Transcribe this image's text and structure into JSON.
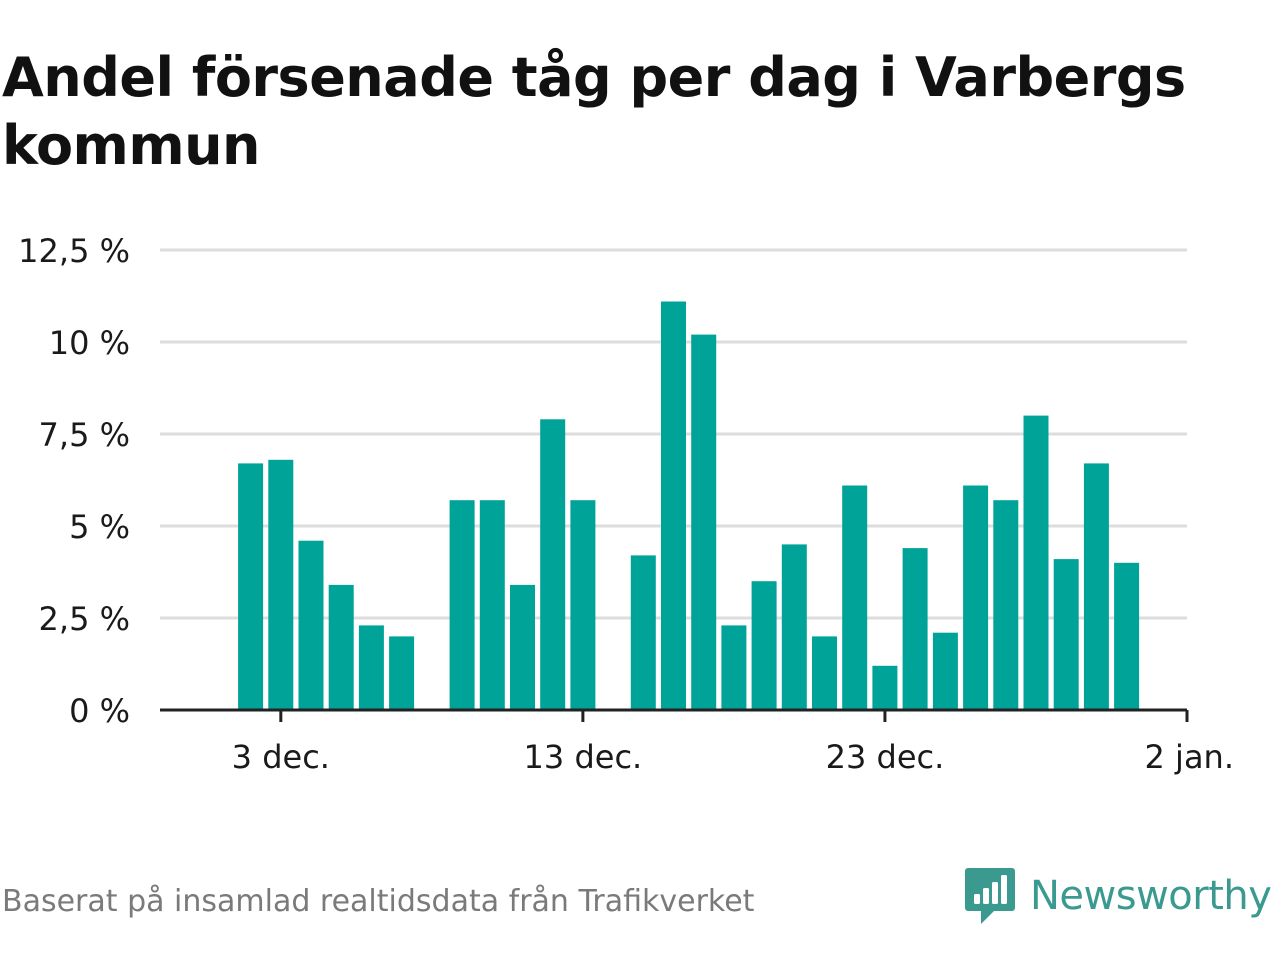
{
  "title": "Andel försenade tåg per dag i Varbergs kommun",
  "source_note": "Baserat på insamlad realtidsdata från Trafikverket",
  "brand": {
    "name": "Newsworthy",
    "icon": "newsworthy-logo-icon"
  },
  "colors": {
    "bar": "#00a398",
    "grid": "#dddddd",
    "axis": "#222222",
    "brand": "#3a9a8f"
  },
  "chart_data": {
    "type": "bar",
    "title": "Andel försenade tåg per dag i Varbergs kommun",
    "xlabel": "",
    "ylabel": "",
    "ylim": [
      0,
      12.5
    ],
    "xlim": [
      "2023-11-29",
      "2024-01-02"
    ],
    "y_ticks": [
      {
        "value": 0,
        "label": "0 %"
      },
      {
        "value": 2.5,
        "label": "2,5 %"
      },
      {
        "value": 5,
        "label": "5 %"
      },
      {
        "value": 7.5,
        "label": "7,5 %"
      },
      {
        "value": 10,
        "label": "10 %"
      },
      {
        "value": 12.5,
        "label": "12,5 %"
      }
    ],
    "x_ticks": [
      {
        "date": "2023-12-03",
        "label": "3 dec."
      },
      {
        "date": "2023-12-13",
        "label": "13 dec."
      },
      {
        "date": "2023-12-23",
        "label": "23 dec."
      },
      {
        "date": "2024-01-02",
        "label": "2 jan."
      }
    ],
    "grid": true,
    "legend": "none",
    "x": [
      "2023-12-02",
      "2023-12-03",
      "2023-12-04",
      "2023-12-05",
      "2023-12-06",
      "2023-12-07",
      "2023-12-08",
      "2023-12-09",
      "2023-12-10",
      "2023-12-11",
      "2023-12-12",
      "2023-12-13",
      "2023-12-14",
      "2023-12-15",
      "2023-12-16",
      "2023-12-17",
      "2023-12-18",
      "2023-12-19",
      "2023-12-20",
      "2023-12-21",
      "2023-12-22",
      "2023-12-23",
      "2023-12-24",
      "2023-12-25",
      "2023-12-26",
      "2023-12-27",
      "2023-12-28",
      "2023-12-29",
      "2023-12-30",
      "2023-12-31",
      "2024-01-01"
    ],
    "values": [
      6.7,
      6.8,
      4.6,
      3.4,
      2.3,
      2.0,
      null,
      5.7,
      5.7,
      3.4,
      7.9,
      5.7,
      null,
      4.2,
      11.1,
      10.2,
      2.3,
      3.5,
      4.5,
      2.0,
      6.1,
      1.2,
      4.4,
      2.1,
      6.1,
      5.7,
      8.0,
      4.1,
      6.7,
      4.0,
      null
    ]
  }
}
